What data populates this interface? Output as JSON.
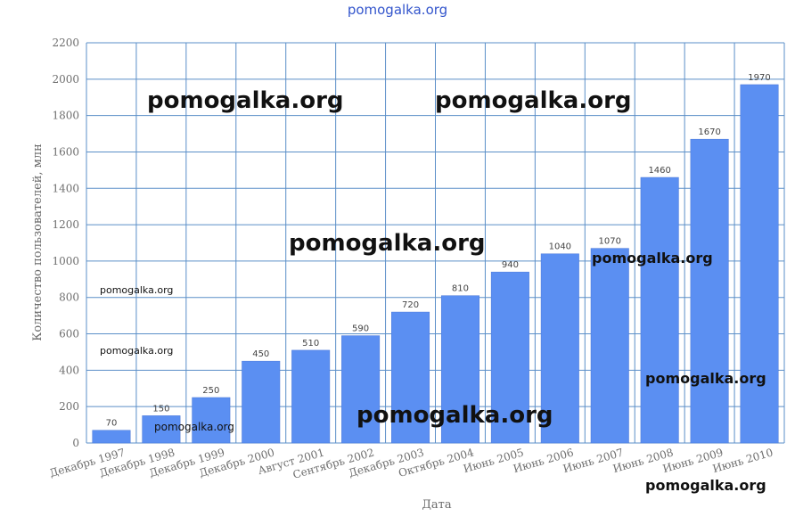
{
  "chart_data": {
    "type": "bar",
    "title": "",
    "xlabel": "Дата",
    "ylabel": "Количество пользователей, млн",
    "ylim": [
      0,
      2200
    ],
    "yticks": [
      0,
      200,
      400,
      600,
      800,
      1000,
      1200,
      1400,
      1600,
      1800,
      2000,
      2200
    ],
    "grid": true,
    "bar_color": "#5b8ff2",
    "grid_color": "#5b8fc8",
    "categories": [
      "Декабрь 1997",
      "Декабрь 1998",
      "Декабрь 1999",
      "Декабрь 2000",
      "Август 2001",
      "Сентябрь 2002",
      "Декабрь 2003",
      "Октябрь 2004",
      "Июнь 2005",
      "Июнь 2006",
      "Июнь 2007",
      "Июнь 2008",
      "Июнь 2009",
      "Июнь 2010"
    ],
    "values": [
      70,
      150,
      250,
      450,
      510,
      590,
      720,
      810,
      940,
      1040,
      1070,
      1460,
      1670,
      1970
    ]
  },
  "watermarks": {
    "top": "pomogalka.org",
    "w1": "pomogalka.org",
    "w2": "pomogalka.org",
    "w3": "pomogalka.org",
    "w4": "pomogalka.org",
    "w5": "pomogalka.org",
    "w6": "pomogalka.org",
    "w7": "pomogalka.org",
    "w8": "pomogalka.org",
    "w9": "pomogalka.org",
    "w10": "pomogalka.org"
  }
}
